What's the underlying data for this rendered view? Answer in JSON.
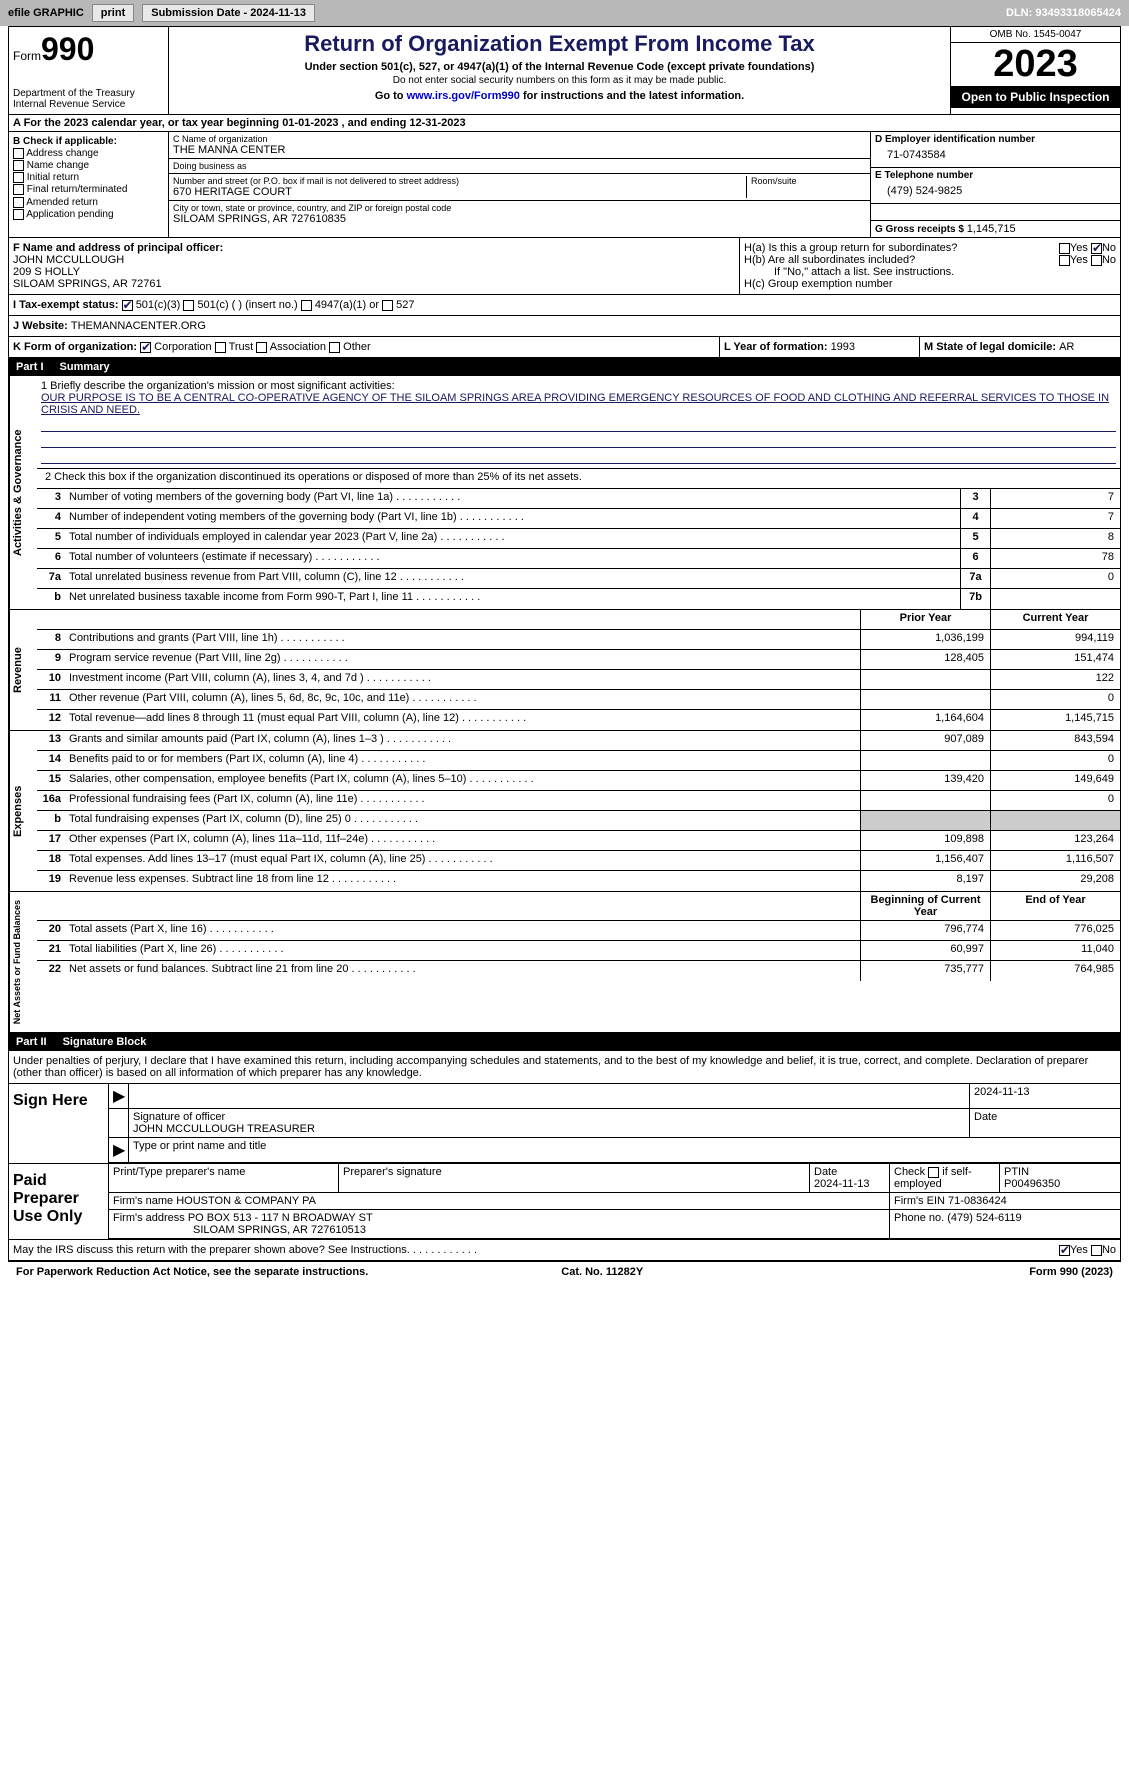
{
  "topbar": {
    "efile": "efile GRAPHIC",
    "print": "print",
    "subdate_label": "Submission Date - ",
    "subdate": "2024-11-13",
    "dln_label": "DLN: ",
    "dln": "93493318065424"
  },
  "header": {
    "form_label": "Form",
    "form_num": "990",
    "dept": "Department of the Treasury\nInternal Revenue Service",
    "title": "Return of Organization Exempt From Income Tax",
    "sub1": "Under section 501(c), 527, or 4947(a)(1) of the Internal Revenue Code (except private foundations)",
    "sub2": "Do not enter social security numbers on this form as it may be made public.",
    "goto_pre": "Go to ",
    "goto_link": "www.irs.gov/Form990",
    "goto_post": " for instructions and the latest information.",
    "omb": "OMB No. 1545-0047",
    "year": "2023",
    "open": "Open to Public Inspection"
  },
  "row_a": "A For the 2023 calendar year, or tax year beginning 01-01-2023   , and ending 12-31-2023",
  "col_b": {
    "label": "B Check if applicable:",
    "opts": [
      "Address change",
      "Name change",
      "Initial return",
      "Final return/terminated",
      "Amended return",
      "Application pending"
    ]
  },
  "col_c": {
    "name_label": "C Name of organization",
    "name": "THE MANNA CENTER",
    "dba_label": "Doing business as",
    "dba": "",
    "street_label": "Number and street (or P.O. box if mail is not delivered to street address)",
    "street": "670 HERITAGE COURT",
    "room_label": "Room/suite",
    "city_label": "City or town, state or province, country, and ZIP or foreign postal code",
    "city": "SILOAM SPRINGS, AR  727610835"
  },
  "col_d": {
    "ein_label": "D Employer identification number",
    "ein": "71-0743584",
    "tel_label": "E Telephone number",
    "tel": "(479) 524-9825",
    "gross_label": "G Gross receipts $ ",
    "gross": "1,145,715"
  },
  "row_f": {
    "label": "F Name and address of principal officer:",
    "name": "JOHN MCCULLOUGH",
    "addr1": "209 S HOLLY",
    "addr2": "SILOAM SPRINGS, AR  72761"
  },
  "row_h": {
    "ha": "H(a)  Is this a group return for subordinates?",
    "hb": "H(b)  Are all subordinates included?",
    "hb_note": "If \"No,\" attach a list. See instructions.",
    "hc": "H(c)  Group exemption number "
  },
  "row_i": {
    "label": "I   Tax-exempt status:",
    "o1": "501(c)(3)",
    "o2": "501(c) (  ) (insert no.)",
    "o3": "4947(a)(1) or",
    "o4": "527"
  },
  "row_j": {
    "label": "J   Website: ",
    "val": "THEMANNACENTER.ORG"
  },
  "row_k": {
    "label": "K Form of organization:",
    "o1": "Corporation",
    "o2": "Trust",
    "o3": "Association",
    "o4": "Other"
  },
  "row_l": {
    "label": "L Year of formation: ",
    "val": "1993"
  },
  "row_m": {
    "label": "M State of legal domicile: ",
    "val": "AR"
  },
  "part1": {
    "num": "Part I",
    "title": "Summary"
  },
  "mission": {
    "label": "1   Briefly describe the organization's mission or most significant activities:",
    "text": "OUR PURPOSE IS TO BE A CENTRAL CO-OPERATIVE AGENCY OF THE SILOAM SPRINGS AREA PROVIDING EMERGENCY RESOURCES OF FOOD AND CLOTHING AND REFERRAL SERVICES TO THOSE IN CRISIS AND NEED."
  },
  "line2": "2   Check this box      if the organization discontinued its operations or disposed of more than 25% of its net assets.",
  "vtabs": {
    "ag": "Activities & Governance",
    "rev": "Revenue",
    "exp": "Expenses",
    "na": "Net Assets or Fund Balances"
  },
  "lines_ag": [
    {
      "n": "3",
      "t": "Number of voting members of the governing body (Part VI, line 1a)",
      "nb": "3",
      "v": "7"
    },
    {
      "n": "4",
      "t": "Number of independent voting members of the governing body (Part VI, line 1b)",
      "nb": "4",
      "v": "7"
    },
    {
      "n": "5",
      "t": "Total number of individuals employed in calendar year 2023 (Part V, line 2a)",
      "nb": "5",
      "v": "8"
    },
    {
      "n": "6",
      "t": "Total number of volunteers (estimate if necessary)",
      "nb": "6",
      "v": "78"
    },
    {
      "n": "7a",
      "t": "Total unrelated business revenue from Part VIII, column (C), line 12",
      "nb": "7a",
      "v": "0"
    },
    {
      "n": "b",
      "t": "Net unrelated business taxable income from Form 990-T, Part I, line 11",
      "nb": "7b",
      "v": ""
    }
  ],
  "col_hdrs": {
    "py": "Prior Year",
    "cy": "Current Year"
  },
  "lines_rev": [
    {
      "n": "8",
      "t": "Contributions and grants (Part VIII, line 1h)",
      "py": "1,036,199",
      "cy": "994,119"
    },
    {
      "n": "9",
      "t": "Program service revenue (Part VIII, line 2g)",
      "py": "128,405",
      "cy": "151,474"
    },
    {
      "n": "10",
      "t": "Investment income (Part VIII, column (A), lines 3, 4, and 7d )",
      "py": "",
      "cy": "122"
    },
    {
      "n": "11",
      "t": "Other revenue (Part VIII, column (A), lines 5, 6d, 8c, 9c, 10c, and 11e)",
      "py": "",
      "cy": "0"
    },
    {
      "n": "12",
      "t": "Total revenue—add lines 8 through 11 (must equal Part VIII, column (A), line 12)",
      "py": "1,164,604",
      "cy": "1,145,715"
    }
  ],
  "lines_exp": [
    {
      "n": "13",
      "t": "Grants and similar amounts paid (Part IX, column (A), lines 1–3 )",
      "py": "907,089",
      "cy": "843,594"
    },
    {
      "n": "14",
      "t": "Benefits paid to or for members (Part IX, column (A), line 4)",
      "py": "",
      "cy": "0"
    },
    {
      "n": "15",
      "t": "Salaries, other compensation, employee benefits (Part IX, column (A), lines 5–10)",
      "py": "139,420",
      "cy": "149,649"
    },
    {
      "n": "16a",
      "t": "Professional fundraising fees (Part IX, column (A), line 11e)",
      "py": "",
      "cy": "0"
    },
    {
      "n": "b",
      "t": "Total fundraising expenses (Part IX, column (D), line 25) 0",
      "py": "shade",
      "cy": "shade"
    },
    {
      "n": "17",
      "t": "Other expenses (Part IX, column (A), lines 11a–11d, 11f–24e)",
      "py": "109,898",
      "cy": "123,264"
    },
    {
      "n": "18",
      "t": "Total expenses. Add lines 13–17 (must equal Part IX, column (A), line 25)",
      "py": "1,156,407",
      "cy": "1,116,507"
    },
    {
      "n": "19",
      "t": "Revenue less expenses. Subtract line 18 from line 12",
      "py": "8,197",
      "cy": "29,208"
    }
  ],
  "col_hdrs2": {
    "by": "Beginning of Current Year",
    "ey": "End of Year"
  },
  "lines_na": [
    {
      "n": "20",
      "t": "Total assets (Part X, line 16)",
      "py": "796,774",
      "cy": "776,025"
    },
    {
      "n": "21",
      "t": "Total liabilities (Part X, line 26)",
      "py": "60,997",
      "cy": "11,040"
    },
    {
      "n": "22",
      "t": "Net assets or fund balances. Subtract line 21 from line 20",
      "py": "735,777",
      "cy": "764,985"
    }
  ],
  "part2": {
    "num": "Part II",
    "title": "Signature Block"
  },
  "sig_intro": "Under penalties of perjury, I declare that I have examined this return, including accompanying schedules and statements, and to the best of my knowledge and belief, it is true, correct, and complete. Declaration of preparer (other than officer) is based on all information of which preparer has any knowledge.",
  "sign_here": {
    "label": "Sign Here",
    "date": "2024-11-13",
    "sig_label": "Signature of officer",
    "name": "JOHN MCCULLOUGH  TREASURER",
    "name_label": "Type or print name and title",
    "date_label": "Date"
  },
  "paid_prep": {
    "label": "Paid Preparer Use Only",
    "r1": {
      "c1": "Print/Type preparer's name",
      "c2": "Preparer's signature",
      "c3l": "Date",
      "c3v": "2024-11-13",
      "c4": "Check       if self-employed",
      "c5l": "PTIN",
      "c5v": "P00496350"
    },
    "r2": {
      "c1l": "Firm's name   ",
      "c1v": "HOUSTON & COMPANY PA",
      "c2l": "Firm's EIN  ",
      "c2v": "71-0836424"
    },
    "r3": {
      "c1l": "Firm's address ",
      "c1v": "PO BOX 513 - 117 N BROADWAY ST",
      "c1v2": "SILOAM SPRINGS, AR  727610513",
      "c2l": "Phone no. ",
      "c2v": "(479) 524-6119"
    }
  },
  "discuss": "May the IRS discuss this return with the preparer shown above? See Instructions.",
  "footer": {
    "l": "For Paperwork Reduction Act Notice, see the separate instructions.",
    "m": "Cat. No. 11282Y",
    "r": "Form 990 (2023)"
  }
}
